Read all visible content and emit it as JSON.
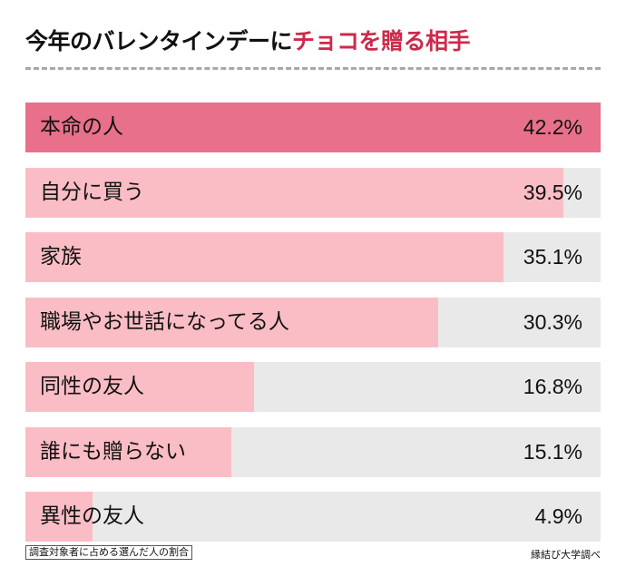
{
  "title": {
    "main": "今年のバレンタインデーに",
    "highlight": "チョコを贈る相手"
  },
  "colors": {
    "highlight_bar": "#e8708a",
    "bar": "#fbbdc5",
    "track": "#e9e9e9",
    "title_accent": "#cc2a4a"
  },
  "chart_data": {
    "type": "bar",
    "orientation": "horizontal",
    "title": "今年のバレンタインデーにチョコを贈る相手",
    "categories": [
      "本命の人",
      "自分に買う",
      "家族",
      "職場やお世話になってる人",
      "同性の友人",
      "誰にも贈らない",
      "異性の友人"
    ],
    "values": [
      42.2,
      39.5,
      35.1,
      30.3,
      16.8,
      15.1,
      4.9
    ],
    "value_labels": [
      "42.2%",
      "39.5%",
      "35.1%",
      "30.3%",
      "16.8%",
      "15.1%",
      "4.9%"
    ],
    "unit": "%",
    "xlim": [
      0,
      42.2
    ],
    "grid": false
  },
  "note": "調査対象者に占める選んだ人の割合",
  "source": "縁結び大学調べ"
}
